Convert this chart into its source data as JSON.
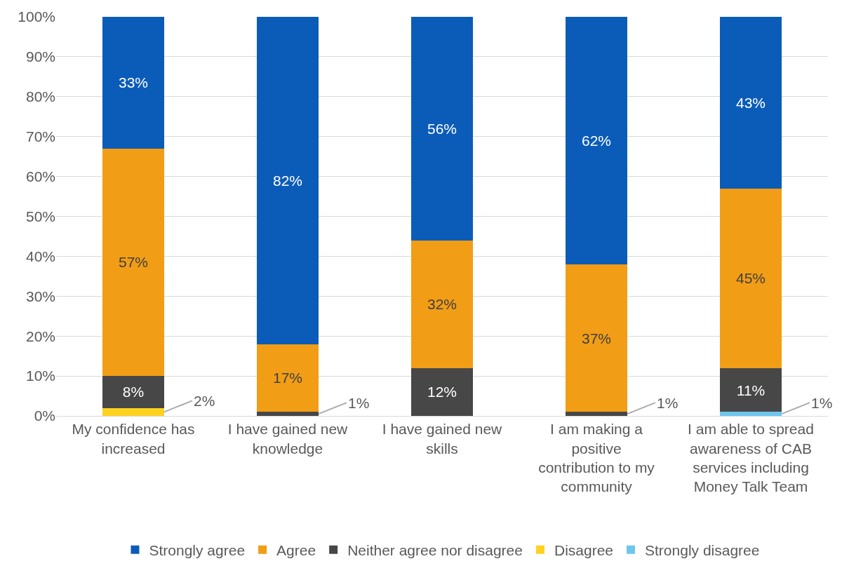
{
  "chart_data": {
    "type": "bar",
    "stacked": true,
    "categories": [
      "My confidence has increased",
      "I have gained new knowledge",
      "I have gained new skills",
      "I am making a positive contribution to my community",
      "I am able to spread awareness of CAB services including Money Talk Team"
    ],
    "series": [
      {
        "name": "Strongly disagree",
        "color": "#6ec6ee",
        "values": [
          0,
          0,
          0,
          0,
          1
        ],
        "value_labels": [
          null,
          null,
          null,
          null,
          "1%"
        ]
      },
      {
        "name": "Disagree",
        "color": "#ffd21f",
        "values": [
          2,
          0,
          0,
          0,
          0
        ],
        "value_labels": [
          "2%",
          null,
          null,
          null,
          null
        ]
      },
      {
        "name": "Neither agree nor disagree",
        "color": "#474747",
        "values": [
          8,
          1,
          12,
          1,
          11
        ],
        "value_labels": [
          "8%",
          "1%",
          "12%",
          "1%",
          "11%"
        ]
      },
      {
        "name": "Agree",
        "color": "#f29d16",
        "values": [
          57,
          17,
          32,
          37,
          45
        ],
        "value_labels": [
          "57%",
          "17%",
          "32%",
          "37%",
          "45%"
        ]
      },
      {
        "name": "Strongly agree",
        "color": "#0b5cb8",
        "values": [
          33,
          82,
          56,
          62,
          43
        ],
        "value_labels": [
          "33%",
          "82%",
          "56%",
          "62%",
          "43%"
        ]
      }
    ],
    "ylim": [
      0,
      100
    ],
    "yticks": [
      {
        "value": 0,
        "label": "0%"
      },
      {
        "value": 10,
        "label": "10%"
      },
      {
        "value": 20,
        "label": "20%"
      },
      {
        "value": 30,
        "label": "30%"
      },
      {
        "value": 40,
        "label": "40%"
      },
      {
        "value": 50,
        "label": "50%"
      },
      {
        "value": 60,
        "label": "60%"
      },
      {
        "value": 70,
        "label": "70%"
      },
      {
        "value": 80,
        "label": "80%"
      },
      {
        "value": 90,
        "label": "90%"
      },
      {
        "value": 100,
        "label": "100%"
      }
    ],
    "grid": "y",
    "legend": "bottom"
  }
}
